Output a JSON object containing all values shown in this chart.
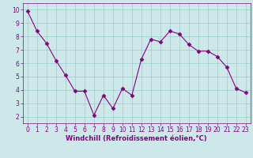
{
  "x": [
    0,
    1,
    2,
    3,
    4,
    5,
    6,
    7,
    8,
    9,
    10,
    11,
    12,
    13,
    14,
    15,
    16,
    17,
    18,
    19,
    20,
    21,
    22,
    23
  ],
  "y": [
    9.9,
    8.4,
    7.5,
    6.2,
    5.1,
    3.9,
    3.9,
    2.1,
    3.6,
    2.6,
    4.1,
    3.6,
    6.3,
    7.8,
    7.6,
    8.4,
    8.2,
    7.4,
    6.9,
    6.9,
    6.5,
    5.7,
    4.1,
    3.8
  ],
  "line_color": "#880088",
  "marker": "D",
  "marker_size": 2.5,
  "bg_color": "#cce8e8",
  "grid_color": "#99cccc",
  "xlabel": "Windchill (Refroidissement éolien,°C)",
  "xlim": [
    -0.5,
    23.5
  ],
  "ylim": [
    1.5,
    10.5
  ],
  "yticks": [
    2,
    3,
    4,
    5,
    6,
    7,
    8,
    9,
    10
  ],
  "xticks": [
    0,
    1,
    2,
    3,
    4,
    5,
    6,
    7,
    8,
    9,
    10,
    11,
    12,
    13,
    14,
    15,
    16,
    17,
    18,
    19,
    20,
    21,
    22,
    23
  ],
  "tick_color": "#880088",
  "label_fontsize": 6,
  "tick_fontsize": 5.5
}
